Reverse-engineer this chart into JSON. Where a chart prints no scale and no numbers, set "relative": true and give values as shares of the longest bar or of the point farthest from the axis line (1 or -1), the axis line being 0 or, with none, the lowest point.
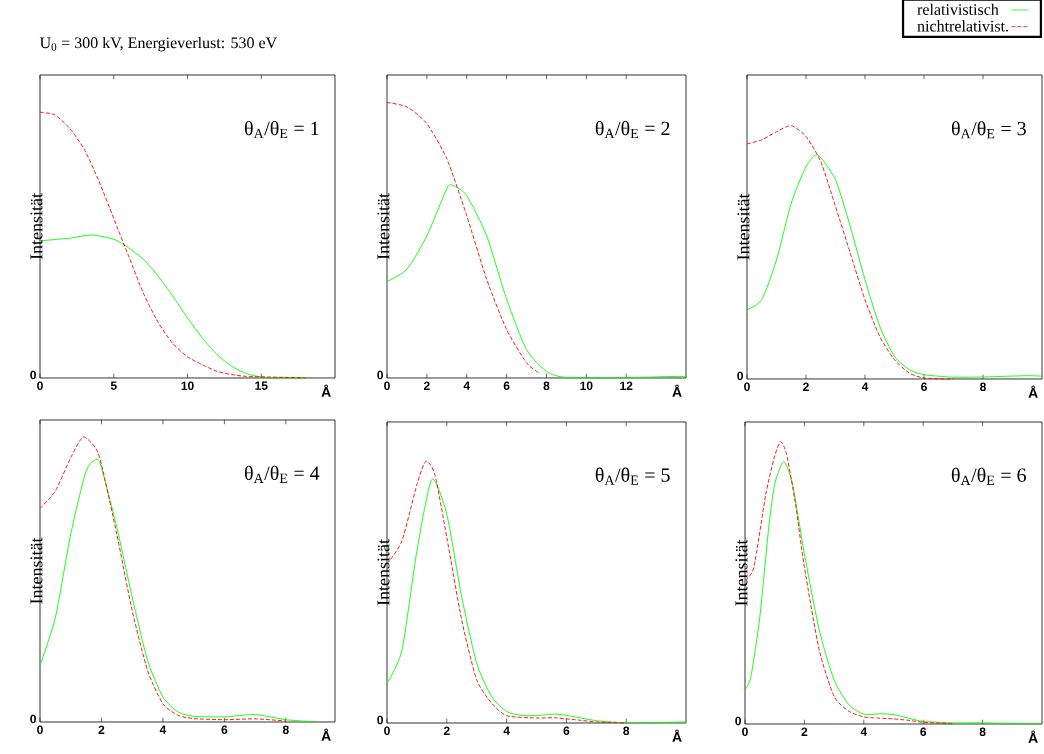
{
  "chart_data": [
    {
      "type": "line",
      "title": "U$_{0}$ = 300 kV, Energieverlust: 530 eV",
      "xlabel": "Å",
      "ylabel": "Intensität",
      "relative": true,
      "xlim": [
        0,
        20
      ],
      "xticks": [
        0,
        5,
        10,
        15
      ],
      "annotations": [
        "θ$_{A}$/θ$_{E}$ = 1",
        "0"
      ],
      "series": [
        {
          "color": "#00ff00",
          "line_style": "solid",
          "x": [
            0,
            2,
            3.5,
            5,
            6,
            7,
            8,
            9,
            10,
            11,
            12,
            13,
            14,
            15,
            16,
            18
          ],
          "values": [
            0.516,
            0.526,
            0.538,
            0.522,
            0.49,
            0.447,
            0.384,
            0.308,
            0.226,
            0.151,
            0.088,
            0.044,
            0.016,
            0.004,
            0,
            0
          ]
        },
        {
          "color": "#ff0000",
          "line_style": "dashed",
          "x": [
            0,
            1,
            2,
            3,
            4,
            5,
            6,
            7,
            8,
            9,
            10,
            11,
            12,
            13,
            14,
            16,
            18
          ],
          "values": [
            1,
            0.99,
            0.94,
            0.86,
            0.74,
            0.6,
            0.46,
            0.32,
            0.21,
            0.13,
            0.08,
            0.05,
            0.025,
            0.013,
            0.006,
            0.003,
            0.001
          ]
        }
      ]
    },
    {
      "type": "line",
      "xlabel": "Å",
      "ylabel": "Intensität",
      "relative": true,
      "xlim": [
        0,
        15
      ],
      "xticks": [
        0,
        2,
        4,
        6,
        8,
        10,
        12
      ],
      "annotations": [
        "θ$_{A}$/θ$_{E}$ = 2",
        "0"
      ],
      "series": [
        {
          "color": "#00ff00",
          "line_style": "solid",
          "x": [
            0,
            1,
            2,
            3,
            3.3,
            4,
            5,
            6,
            7,
            8,
            9,
            12,
            14,
            15
          ],
          "values": [
            0.35,
            0.395,
            0.516,
            0.687,
            0.699,
            0.662,
            0.516,
            0.286,
            0.103,
            0.024,
            0.002,
            0.001,
            0.005,
            0.006
          ]
        },
        {
          "color": "#ff0000",
          "line_style": "dashed",
          "x": [
            0,
            1,
            2,
            3,
            4,
            5,
            6,
            7,
            7.6
          ],
          "values": [
            1,
            0.984,
            0.923,
            0.796,
            0.589,
            0.358,
            0.176,
            0.055,
            0.02
          ]
        }
      ]
    },
    {
      "type": "line",
      "xlabel": "Å",
      "ylabel": "Intensität",
      "relative": true,
      "xlim": [
        0,
        10
      ],
      "xticks": [
        0,
        2,
        4,
        6,
        8
      ],
      "legend": "top right",
      "annotations": [
        "θ$_{A}$/θ$_{E}$ = 3",
        "0"
      ],
      "series": [
        {
          "name": "relativistisch",
          "color": "#00ff00",
          "line_style": "solid",
          "x": [
            0,
            0.5,
            1,
            1.5,
            2,
            2.4,
            3,
            3.5,
            4,
            4.5,
            5,
            5.5,
            6,
            7,
            8,
            9.5,
            10
          ],
          "values": [
            0.273,
            0.313,
            0.47,
            0.694,
            0.838,
            0.884,
            0.786,
            0.602,
            0.392,
            0.208,
            0.089,
            0.037,
            0.017,
            0.007,
            0.008,
            0.013,
            0.011
          ]
        },
        {
          "name": "nichtrelativist.",
          "color": "#ff0000",
          "line_style": "dashed",
          "x": [
            0,
            0.5,
            1,
            1.5,
            2,
            2.5,
            3,
            3.5,
            4,
            4.5,
            5,
            5.5,
            6,
            7
          ],
          "values": [
            0.928,
            0.944,
            0.976,
            1,
            0.957,
            0.858,
            0.681,
            0.497,
            0.313,
            0.168,
            0.076,
            0.024,
            0.004,
            0
          ]
        }
      ]
    },
    {
      "type": "line",
      "xlabel": "Å",
      "ylabel": "Intensität",
      "relative": true,
      "xlim": [
        0,
        9.6
      ],
      "xticks": [
        0,
        2,
        4,
        6,
        8
      ],
      "annotations": [
        "θ$_{A}$/θ$_{E}$ = 4",
        "0"
      ],
      "series": [
        {
          "color": "#00ff00",
          "line_style": "solid",
          "x": [
            0,
            0.5,
            1,
            1.5,
            1.85,
            2,
            2.5,
            3,
            3.5,
            4,
            4.5,
            5,
            6,
            7,
            8,
            9
          ],
          "values": [
            0.198,
            0.367,
            0.659,
            0.881,
            0.922,
            0.893,
            0.683,
            0.438,
            0.216,
            0.088,
            0.035,
            0.02,
            0.018,
            0.026,
            0.008,
            0
          ]
        },
        {
          "color": "#ff0000",
          "line_style": "dashed",
          "x": [
            0,
            0.5,
            1,
            1.4,
            1.8,
            2,
            2.5,
            3,
            3.5,
            4,
            4.5,
            5,
            6,
            7,
            8
          ],
          "values": [
            0.75,
            0.811,
            0.928,
            1,
            0.963,
            0.904,
            0.659,
            0.391,
            0.181,
            0.064,
            0.023,
            0.012,
            0.008,
            0.011,
            0.0035
          ]
        }
      ]
    },
    {
      "type": "line",
      "xlabel": "Å",
      "ylabel": "Intensität",
      "relative": true,
      "xlim": [
        0,
        10
      ],
      "xticks": [
        0,
        2,
        4,
        6,
        8
      ],
      "annotations": [
        "θ$_{A}$/θ$_{E}$ = 5",
        "0"
      ],
      "series": [
        {
          "color": "#00ff00",
          "line_style": "solid",
          "x": [
            0,
            0.5,
            1,
            1.5,
            2,
            2.5,
            3,
            3.5,
            4,
            4.5,
            5,
            5.6,
            6,
            7,
            8,
            10
          ],
          "values": [
            0.152,
            0.278,
            0.658,
            0.93,
            0.797,
            0.481,
            0.228,
            0.101,
            0.044,
            0.029,
            0.028,
            0.034,
            0.029,
            0.009,
            0.001,
            0.004
          ]
        },
        {
          "color": "#ff0000",
          "line_style": "dashed",
          "x": [
            0,
            0.5,
            1,
            1.3,
            1.6,
            2,
            2.5,
            3,
            3.5,
            4,
            5,
            5.6,
            6.5,
            7,
            8
          ],
          "values": [
            0.608,
            0.696,
            0.911,
            1,
            0.949,
            0.709,
            0.392,
            0.165,
            0.076,
            0.028,
            0.019,
            0.02,
            0.01,
            0.004,
            0
          ]
        }
      ]
    },
    {
      "type": "line",
      "xlabel": "Å",
      "ylabel": "Intensität",
      "relative": true,
      "xlim": [
        0,
        10
      ],
      "xticks": [
        0,
        2,
        4,
        6,
        8
      ],
      "annotations": [
        "θ$_{A}$/θ$_{E}$ = 6",
        "0"
      ],
      "series": [
        {
          "color": "#00ff00",
          "line_style": "solid",
          "x": [
            0,
            0.2,
            0.5,
            0.8,
            1,
            1.3,
            1.6,
            2,
            2.5,
            3,
            3.5,
            4,
            4.6,
            5,
            5.5,
            6,
            7,
            8,
            10
          ],
          "values": [
            0.121,
            0.168,
            0.38,
            0.697,
            0.85,
            0.929,
            0.85,
            0.603,
            0.333,
            0.156,
            0.068,
            0.035,
            0.036,
            0.033,
            0.021,
            0.009,
            0.004,
            0.004,
            0
          ]
        },
        {
          "color": "#ff0000",
          "line_style": "dashed",
          "x": [
            0,
            0.3,
            0.7,
            1,
            1.2,
            1.4,
            1.7,
            2,
            2.5,
            3,
            3.5,
            4,
            4.5,
            5,
            5.5,
            6,
            7
          ],
          "values": [
            0.509,
            0.556,
            0.814,
            0.949,
            1,
            0.955,
            0.779,
            0.556,
            0.262,
            0.098,
            0.045,
            0.025,
            0.021,
            0.018,
            0.013,
            0.006,
            0.001
          ]
        }
      ]
    }
  ]
}
